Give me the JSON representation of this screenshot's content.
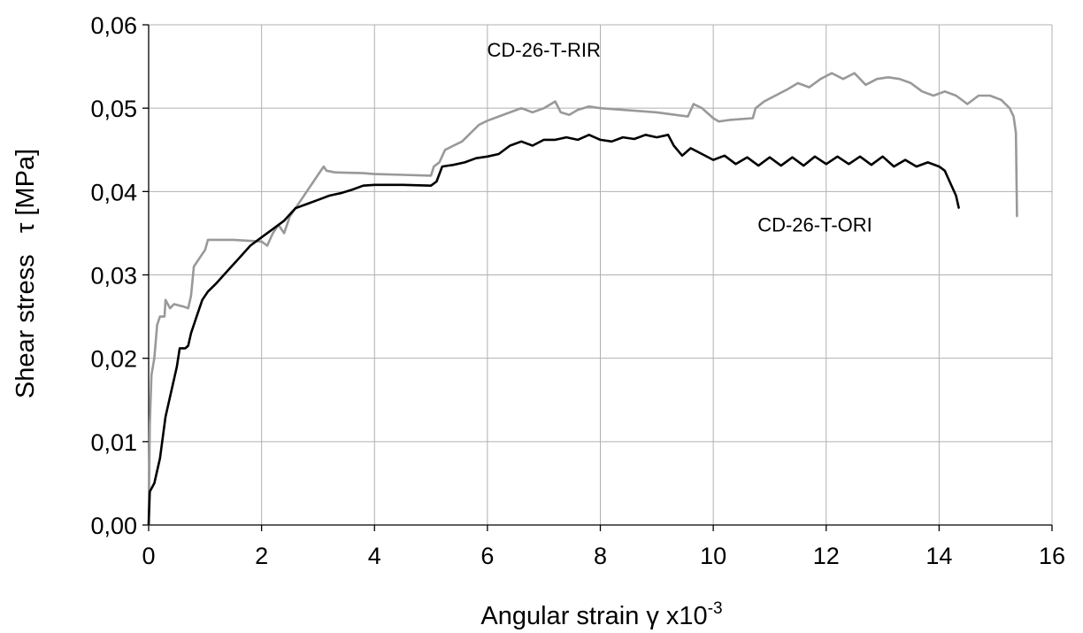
{
  "chart_data": {
    "type": "line",
    "xlabel": "Angular strain γ x10",
    "xlabel_exp": "-3",
    "ylabel": "Shear stress   τ [MPa]",
    "xlim": [
      0,
      16
    ],
    "ylim": [
      0,
      0.06
    ],
    "x_ticks": [
      0,
      2,
      4,
      6,
      8,
      10,
      12,
      14,
      16
    ],
    "x_tick_labels": [
      "0",
      "2",
      "4",
      "6",
      "8",
      "10",
      "12",
      "14",
      "16"
    ],
    "y_ticks": [
      0,
      0.01,
      0.02,
      0.03,
      0.04,
      0.05,
      0.06
    ],
    "y_tick_labels": [
      "0,00",
      "0,01",
      "0,02",
      "0,03",
      "0,04",
      "0,05",
      "0,06"
    ],
    "grid": true,
    "series": [
      {
        "name": "CD-26-T-RIR",
        "color": "#999999",
        "points": [
          [
            0.0,
            0.0
          ],
          [
            0.02,
            0.012
          ],
          [
            0.05,
            0.018
          ],
          [
            0.1,
            0.02
          ],
          [
            0.15,
            0.024
          ],
          [
            0.2,
            0.025
          ],
          [
            0.28,
            0.025
          ],
          [
            0.3,
            0.027
          ],
          [
            0.38,
            0.026
          ],
          [
            0.45,
            0.0265
          ],
          [
            0.55,
            0.0263
          ],
          [
            0.62,
            0.0262
          ],
          [
            0.7,
            0.026
          ],
          [
            0.75,
            0.0275
          ],
          [
            0.8,
            0.031
          ],
          [
            0.9,
            0.032
          ],
          [
            1.0,
            0.033
          ],
          [
            1.05,
            0.0342
          ],
          [
            1.5,
            0.0342
          ],
          [
            2.0,
            0.034
          ],
          [
            2.1,
            0.0335
          ],
          [
            2.2,
            0.035
          ],
          [
            2.3,
            0.036
          ],
          [
            2.4,
            0.035
          ],
          [
            2.5,
            0.037
          ],
          [
            2.6,
            0.038
          ],
          [
            2.7,
            0.039
          ],
          [
            2.8,
            0.04
          ],
          [
            2.9,
            0.041
          ],
          [
            3.0,
            0.042
          ],
          [
            3.1,
            0.043
          ],
          [
            3.15,
            0.0425
          ],
          [
            3.3,
            0.0423
          ],
          [
            3.8,
            0.0422
          ],
          [
            4.0,
            0.0421
          ],
          [
            4.5,
            0.042
          ],
          [
            5.0,
            0.0419
          ],
          [
            5.05,
            0.043
          ],
          [
            5.15,
            0.0435
          ],
          [
            5.25,
            0.045
          ],
          [
            5.4,
            0.0455
          ],
          [
            5.55,
            0.046
          ],
          [
            5.7,
            0.047
          ],
          [
            5.85,
            0.048
          ],
          [
            6.0,
            0.0485
          ],
          [
            6.2,
            0.049
          ],
          [
            6.4,
            0.0495
          ],
          [
            6.6,
            0.05
          ],
          [
            6.8,
            0.0495
          ],
          [
            7.0,
            0.05
          ],
          [
            7.2,
            0.0508
          ],
          [
            7.3,
            0.0495
          ],
          [
            7.45,
            0.0492
          ],
          [
            7.6,
            0.0498
          ],
          [
            7.8,
            0.0502
          ],
          [
            8.0,
            0.05
          ],
          [
            9.0,
            0.0495
          ],
          [
            9.55,
            0.049
          ],
          [
            9.65,
            0.0505
          ],
          [
            9.8,
            0.05
          ],
          [
            10.0,
            0.0488
          ],
          [
            10.1,
            0.0484
          ],
          [
            10.3,
            0.0486
          ],
          [
            10.7,
            0.0488
          ],
          [
            10.75,
            0.05
          ],
          [
            10.9,
            0.0508
          ],
          [
            11.1,
            0.0515
          ],
          [
            11.3,
            0.0522
          ],
          [
            11.5,
            0.053
          ],
          [
            11.7,
            0.0525
          ],
          [
            11.9,
            0.0535
          ],
          [
            12.1,
            0.0542
          ],
          [
            12.3,
            0.0535
          ],
          [
            12.5,
            0.0542
          ],
          [
            12.7,
            0.0528
          ],
          [
            12.9,
            0.0535
          ],
          [
            13.1,
            0.0537
          ],
          [
            13.3,
            0.0535
          ],
          [
            13.5,
            0.053
          ],
          [
            13.7,
            0.052
          ],
          [
            13.9,
            0.0515
          ],
          [
            14.1,
            0.052
          ],
          [
            14.3,
            0.0515
          ],
          [
            14.5,
            0.0505
          ],
          [
            14.7,
            0.0515
          ],
          [
            14.9,
            0.0515
          ],
          [
            15.1,
            0.051
          ],
          [
            15.25,
            0.05
          ],
          [
            15.32,
            0.049
          ],
          [
            15.36,
            0.047
          ],
          [
            15.38,
            0.037
          ]
        ]
      },
      {
        "name": "CD-26-T-ORI",
        "color": "#000000",
        "points": [
          [
            0.0,
            0.0
          ],
          [
            0.02,
            0.004
          ],
          [
            0.1,
            0.005
          ],
          [
            0.2,
            0.008
          ],
          [
            0.3,
            0.013
          ],
          [
            0.4,
            0.016
          ],
          [
            0.5,
            0.019
          ],
          [
            0.55,
            0.0212
          ],
          [
            0.65,
            0.0212
          ],
          [
            0.7,
            0.0215
          ],
          [
            0.75,
            0.023
          ],
          [
            0.85,
            0.025
          ],
          [
            0.95,
            0.027
          ],
          [
            1.05,
            0.028
          ],
          [
            1.2,
            0.029
          ],
          [
            1.4,
            0.0305
          ],
          [
            1.6,
            0.032
          ],
          [
            1.8,
            0.0335
          ],
          [
            2.0,
            0.0345
          ],
          [
            2.2,
            0.0355
          ],
          [
            2.4,
            0.0365
          ],
          [
            2.6,
            0.038
          ],
          [
            2.8,
            0.0385
          ],
          [
            3.0,
            0.039
          ],
          [
            3.2,
            0.0395
          ],
          [
            3.4,
            0.0398
          ],
          [
            3.6,
            0.0402
          ],
          [
            3.8,
            0.0407
          ],
          [
            4.0,
            0.0408
          ],
          [
            4.5,
            0.0408
          ],
          [
            5.0,
            0.0407
          ],
          [
            5.1,
            0.0412
          ],
          [
            5.2,
            0.043
          ],
          [
            5.4,
            0.0432
          ],
          [
            5.6,
            0.0435
          ],
          [
            5.8,
            0.044
          ],
          [
            6.0,
            0.0442
          ],
          [
            6.2,
            0.0445
          ],
          [
            6.4,
            0.0455
          ],
          [
            6.6,
            0.046
          ],
          [
            6.8,
            0.0455
          ],
          [
            7.0,
            0.0462
          ],
          [
            7.2,
            0.0462
          ],
          [
            7.4,
            0.0465
          ],
          [
            7.6,
            0.0462
          ],
          [
            7.8,
            0.0468
          ],
          [
            8.0,
            0.0462
          ],
          [
            8.2,
            0.046
          ],
          [
            8.4,
            0.0465
          ],
          [
            8.6,
            0.0463
          ],
          [
            8.8,
            0.0468
          ],
          [
            9.0,
            0.0465
          ],
          [
            9.2,
            0.0468
          ],
          [
            9.3,
            0.0455
          ],
          [
            9.45,
            0.0443
          ],
          [
            9.6,
            0.0452
          ],
          [
            9.8,
            0.0445
          ],
          [
            10.0,
            0.0438
          ],
          [
            10.2,
            0.0443
          ],
          [
            10.4,
            0.0433
          ],
          [
            10.6,
            0.0441
          ],
          [
            10.8,
            0.0431
          ],
          [
            11.0,
            0.0441
          ],
          [
            11.2,
            0.0431
          ],
          [
            11.4,
            0.0441
          ],
          [
            11.6,
            0.0431
          ],
          [
            11.8,
            0.0442
          ],
          [
            12.0,
            0.0433
          ],
          [
            12.2,
            0.0442
          ],
          [
            12.4,
            0.0433
          ],
          [
            12.6,
            0.0442
          ],
          [
            12.8,
            0.0432
          ],
          [
            13.0,
            0.0442
          ],
          [
            13.2,
            0.043
          ],
          [
            13.4,
            0.0438
          ],
          [
            13.6,
            0.043
          ],
          [
            13.8,
            0.0435
          ],
          [
            14.0,
            0.043
          ],
          [
            14.1,
            0.0425
          ],
          [
            14.2,
            0.041
          ],
          [
            14.3,
            0.0395
          ],
          [
            14.35,
            0.038
          ]
        ]
      }
    ],
    "annotations": [
      {
        "text": "CD-26-T-RIR",
        "series": 0,
        "x": 7.0,
        "y": 0.0562
      },
      {
        "text": "CD-26-T-ORI",
        "series": 1,
        "x": 11.8,
        "y": 0.0352
      }
    ]
  }
}
